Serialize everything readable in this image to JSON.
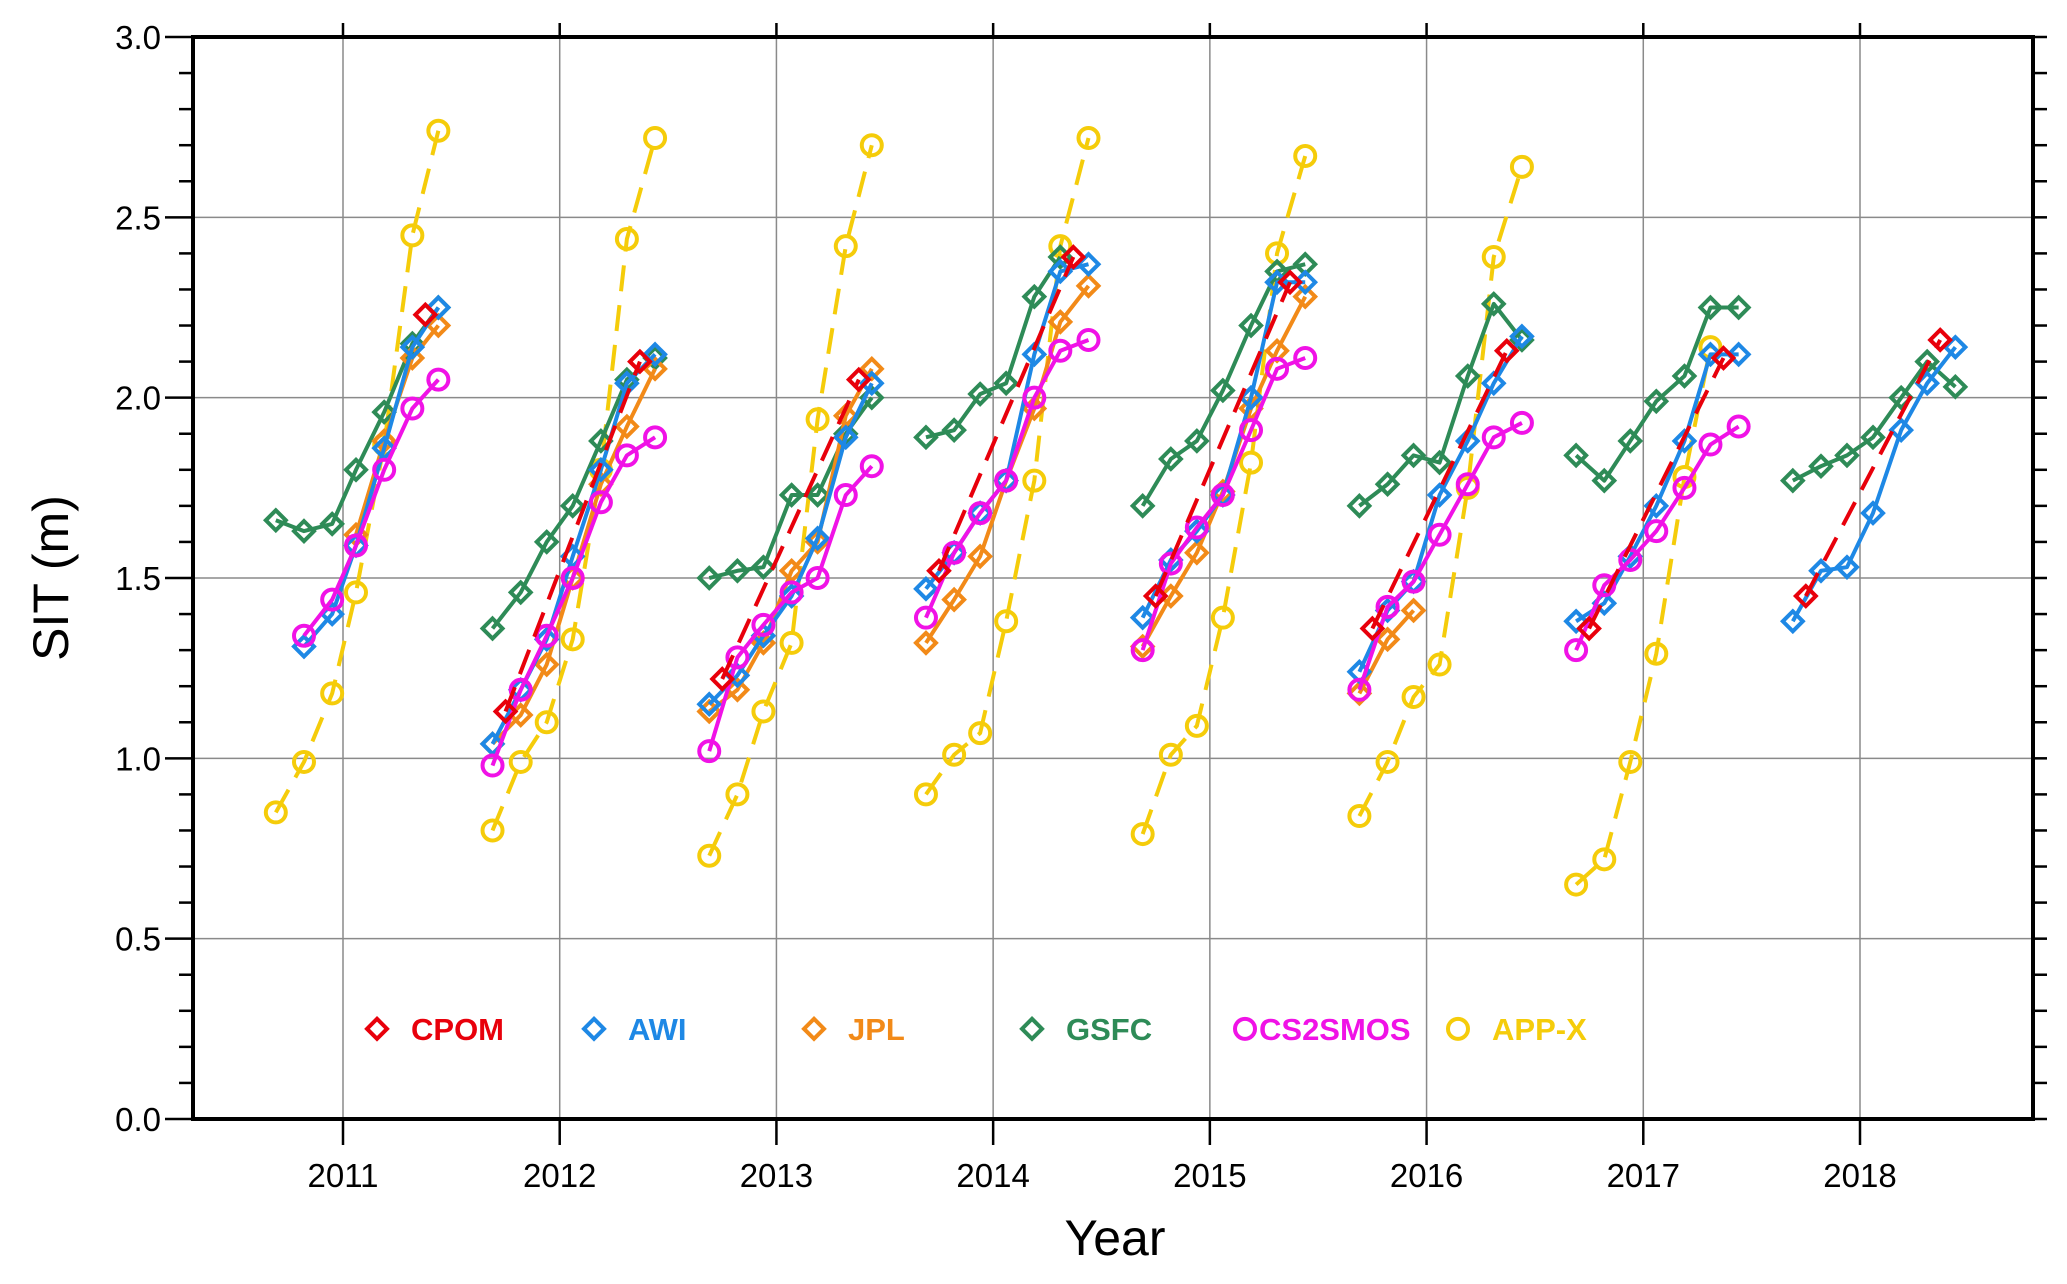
{
  "chart_data": {
    "type": "line",
    "title": "",
    "xlabel": "Year",
    "ylabel": "SIT (m)",
    "xlim": [
      2010.3,
      2018.9
    ],
    "ylim": [
      0.0,
      3.0
    ],
    "x_ticks": [
      2011,
      2012,
      2013,
      2014,
      2015,
      2016,
      2017,
      2018
    ],
    "x_tick_labels": [
      "2011",
      "2012",
      "2013",
      "2014",
      "2015",
      "2016",
      "2017",
      "2018"
    ],
    "y_ticks": [
      0.0,
      0.5,
      1.0,
      1.5,
      2.0,
      2.5,
      3.0
    ],
    "y_tick_labels": [
      "0.0",
      "0.5",
      "1.0",
      "1.5",
      "2.0",
      "2.5",
      "3.0"
    ],
    "y_minor_step": 0.1,
    "grid": true,
    "legend_position": "bottom-inside",
    "series": [
      {
        "name": "CPOM",
        "color": "#e8000b",
        "marker": "diamond",
        "line": "dashed",
        "segments": [
          {
            "x": [
              2011.38
            ],
            "y": [
              2.23
            ]
          },
          {
            "x": [
              2011.75,
              2012.37
            ],
            "y": [
              1.13,
              2.1
            ]
          },
          {
            "x": [
              2012.75,
              2013.38
            ],
            "y": [
              1.22,
              2.05
            ]
          },
          {
            "x": [
              2013.75,
              2014.37
            ],
            "y": [
              1.52,
              2.39
            ]
          },
          {
            "x": [
              2014.75,
              2015.37
            ],
            "y": [
              1.45,
              2.32
            ]
          },
          {
            "x": [
              2015.75,
              2016.37
            ],
            "y": [
              1.36,
              2.13
            ]
          },
          {
            "x": [
              2016.75,
              2017.37
            ],
            "y": [
              1.36,
              2.11
            ]
          },
          {
            "x": [
              2017.75,
              2018.37
            ],
            "y": [
              1.45,
              2.16
            ]
          }
        ]
      },
      {
        "name": "AWI",
        "color": "#1e88e5",
        "marker": "diamond",
        "line": "solid",
        "segments": [
          {
            "x": [
              2010.82,
              2010.95,
              2011.06,
              2011.19,
              2011.32,
              2011.44
            ],
            "y": [
              1.31,
              1.4,
              1.59,
              1.86,
              2.14,
              2.25
            ]
          },
          {
            "x": [
              2011.69,
              2011.82,
              2011.94,
              2012.06,
              2012.19,
              2012.31,
              2012.44
            ],
            "y": [
              1.04,
              1.19,
              1.33,
              1.56,
              1.8,
              2.04,
              2.12
            ]
          },
          {
            "x": [
              2012.69,
              2012.82,
              2012.94,
              2013.07,
              2013.19,
              2013.32,
              2013.44
            ],
            "y": [
              1.15,
              1.23,
              1.34,
              1.45,
              1.61,
              1.89,
              2.04
            ]
          },
          {
            "x": [
              2013.69,
              2013.82,
              2013.94,
              2014.06,
              2014.19,
              2014.31,
              2014.44
            ],
            "y": [
              1.47,
              1.57,
              1.68,
              1.77,
              2.12,
              2.35,
              2.37
            ]
          },
          {
            "x": [
              2014.69,
              2014.82,
              2014.94,
              2015.06,
              2015.19,
              2015.31,
              2015.44
            ],
            "y": [
              1.39,
              1.55,
              1.63,
              1.73,
              2.0,
              2.32,
              2.32
            ]
          },
          {
            "x": [
              2015.69,
              2015.82,
              2015.94,
              2016.06,
              2016.19,
              2016.31,
              2016.44
            ],
            "y": [
              1.24,
              1.41,
              1.49,
              1.73,
              1.88,
              2.04,
              2.17
            ]
          },
          {
            "x": [
              2016.69,
              2016.82,
              2016.94,
              2017.06,
              2017.19,
              2017.31,
              2017.44
            ],
            "y": [
              1.38,
              1.43,
              1.56,
              1.7,
              1.88,
              2.12,
              2.12
            ]
          },
          {
            "x": [
              2017.69,
              2017.82,
              2017.94,
              2018.06,
              2018.19,
              2018.31,
              2018.44
            ],
            "y": [
              1.38,
              1.52,
              1.53,
              1.68,
              1.91,
              2.04,
              2.14
            ]
          }
        ]
      },
      {
        "name": "JPL",
        "color": "#f28a18",
        "marker": "diamond",
        "line": "solid",
        "segments": [
          {
            "x": [
              2011.06,
              2011.19,
              2011.32,
              2011.44
            ],
            "y": [
              1.62,
              1.88,
              2.11,
              2.2
            ]
          },
          {
            "x": [
              2011.69,
              2011.82,
              2011.94,
              2012.06,
              2012.19,
              2012.31,
              2012.44
            ],
            "y": [
              1.04,
              1.12,
              1.26,
              1.5,
              1.76,
              1.92,
              2.08
            ]
          },
          {
            "x": [
              2012.69,
              2012.82,
              2012.94,
              2013.07,
              2013.19,
              2013.32,
              2013.44
            ],
            "y": [
              1.13,
              1.19,
              1.32,
              1.52,
              1.6,
              1.95,
              2.08
            ]
          },
          {
            "x": [
              2013.69,
              2013.82,
              2013.94,
              2014.06,
              2014.19,
              2014.31,
              2014.44
            ],
            "y": [
              1.32,
              1.44,
              1.56,
              1.77,
              1.97,
              2.21,
              2.31
            ]
          },
          {
            "x": [
              2014.69,
              2014.82,
              2014.94,
              2015.06,
              2015.19,
              2015.31,
              2015.44
            ],
            "y": [
              1.31,
              1.45,
              1.57,
              1.74,
              1.97,
              2.13,
              2.28
            ]
          },
          {
            "x": [
              2015.69,
              2015.82,
              2015.94
            ],
            "y": [
              1.18,
              1.33,
              1.41
            ]
          }
        ]
      },
      {
        "name": "GSFC",
        "color": "#2e8b57",
        "marker": "diamond",
        "line": "solid",
        "segments": [
          {
            "x": [
              2010.69,
              2010.82,
              2010.95,
              2011.06,
              2011.19,
              2011.32,
              2011.44
            ],
            "y": [
              1.66,
              1.63,
              1.65,
              1.8,
              1.96,
              2.15,
              2.25
            ]
          },
          {
            "x": [
              2011.69,
              2011.82,
              2011.94,
              2012.06,
              2012.19,
              2012.31,
              2012.44
            ],
            "y": [
              1.36,
              1.46,
              1.6,
              1.7,
              1.88,
              2.05,
              2.11
            ]
          },
          {
            "x": [
              2012.69,
              2012.82,
              2012.94,
              2013.07,
              2013.19,
              2013.32,
              2013.44
            ],
            "y": [
              1.5,
              1.52,
              1.53,
              1.73,
              1.73,
              1.9,
              2.0
            ]
          },
          {
            "x": [
              2013.69,
              2013.82,
              2013.94,
              2014.06,
              2014.19,
              2014.31
            ],
            "y": [
              1.89,
              1.91,
              2.01,
              2.04,
              2.28,
              2.39
            ]
          },
          {
            "x": [
              2014.69,
              2014.82,
              2014.94,
              2015.06,
              2015.19,
              2015.31,
              2015.44
            ],
            "y": [
              1.7,
              1.83,
              1.88,
              2.02,
              2.2,
              2.35,
              2.37
            ]
          },
          {
            "x": [
              2015.69,
              2015.82,
              2015.94,
              2016.06,
              2016.19,
              2016.31,
              2016.44
            ],
            "y": [
              1.7,
              1.76,
              1.84,
              1.82,
              2.06,
              2.26,
              2.16
            ]
          },
          {
            "x": [
              2016.69,
              2016.82,
              2016.94,
              2017.06,
              2017.19,
              2017.31,
              2017.44
            ],
            "y": [
              1.84,
              1.77,
              1.88,
              1.99,
              2.06,
              2.25,
              2.25
            ]
          },
          {
            "x": [
              2017.69,
              2017.82,
              2017.94,
              2018.06,
              2018.19,
              2018.31,
              2018.44
            ],
            "y": [
              1.77,
              1.81,
              1.84,
              1.89,
              2.0,
              2.1,
              2.03
            ]
          }
        ]
      },
      {
        "name": "CS2SMOS",
        "color": "#f012e6",
        "marker": "circle",
        "line": "solid",
        "segments": [
          {
            "x": [
              2010.82,
              2010.95,
              2011.06,
              2011.19,
              2011.32,
              2011.44
            ],
            "y": [
              1.34,
              1.44,
              1.59,
              1.8,
              1.97,
              2.05
            ]
          },
          {
            "x": [
              2011.69,
              2011.82,
              2011.94,
              2012.06,
              2012.19,
              2012.31,
              2012.44
            ],
            "y": [
              0.98,
              1.19,
              1.34,
              1.5,
              1.71,
              1.84,
              1.89
            ]
          },
          {
            "x": [
              2012.69,
              2012.82,
              2012.94,
              2013.07,
              2013.19,
              2013.32,
              2013.44
            ],
            "y": [
              1.02,
              1.28,
              1.37,
              1.46,
              1.5,
              1.73,
              1.81
            ]
          },
          {
            "x": [
              2013.69,
              2013.82,
              2013.94,
              2014.06,
              2014.19,
              2014.31,
              2014.44
            ],
            "y": [
              1.39,
              1.57,
              1.68,
              1.77,
              2.0,
              2.13,
              2.16
            ]
          },
          {
            "x": [
              2014.69,
              2014.82,
              2014.94,
              2015.06,
              2015.19,
              2015.31,
              2015.44
            ],
            "y": [
              1.3,
              1.54,
              1.64,
              1.73,
              1.91,
              2.08,
              2.11
            ]
          },
          {
            "x": [
              2015.69,
              2015.82,
              2015.94,
              2016.06,
              2016.19,
              2016.31,
              2016.44
            ],
            "y": [
              1.19,
              1.42,
              1.49,
              1.62,
              1.76,
              1.89,
              1.93
            ]
          },
          {
            "x": [
              2016.69,
              2016.82,
              2016.94,
              2017.06,
              2017.19,
              2017.31,
              2017.44
            ],
            "y": [
              1.3,
              1.48,
              1.55,
              1.63,
              1.75,
              1.87,
              1.92
            ]
          }
        ]
      },
      {
        "name": "APP-X",
        "color": "#f5cc0a",
        "marker": "circle",
        "line": "dashed",
        "segments": [
          {
            "x": [
              2010.69,
              2010.82,
              2010.95,
              2011.06,
              2011.19,
              2011.32,
              2011.44
            ],
            "y": [
              0.85,
              0.99,
              1.18,
              1.46,
              1.87,
              2.45,
              2.74
            ]
          },
          {
            "x": [
              2011.69,
              2011.82,
              2011.94,
              2012.06,
              2012.19,
              2012.31,
              2012.44
            ],
            "y": [
              0.8,
              0.99,
              1.1,
              1.33,
              1.8,
              2.44,
              2.72
            ]
          },
          {
            "x": [
              2012.69,
              2012.82,
              2012.94,
              2013.07,
              2013.19,
              2013.32,
              2013.44
            ],
            "y": [
              0.73,
              0.9,
              1.13,
              1.32,
              1.94,
              2.42,
              2.7
            ]
          },
          {
            "x": [
              2013.69,
              2013.82,
              2013.94,
              2014.06,
              2014.19,
              2014.31,
              2014.44
            ],
            "y": [
              0.9,
              1.01,
              1.07,
              1.38,
              1.77,
              2.42,
              2.72
            ]
          },
          {
            "x": [
              2014.69,
              2014.82,
              2014.94,
              2015.06,
              2015.19,
              2015.31,
              2015.44
            ],
            "y": [
              0.79,
              1.01,
              1.09,
              1.39,
              1.82,
              2.4,
              2.67
            ]
          },
          {
            "x": [
              2015.69,
              2015.82,
              2015.94,
              2016.06,
              2016.19,
              2016.31,
              2016.44
            ],
            "y": [
              0.84,
              0.99,
              1.17,
              1.26,
              1.75,
              2.39,
              2.64
            ]
          },
          {
            "x": [
              2016.69,
              2016.82,
              2016.94,
              2017.06,
              2017.19,
              2017.31
            ],
            "y": [
              0.65,
              0.72,
              0.99,
              1.29,
              1.78,
              2.14
            ]
          }
        ]
      }
    ]
  }
}
